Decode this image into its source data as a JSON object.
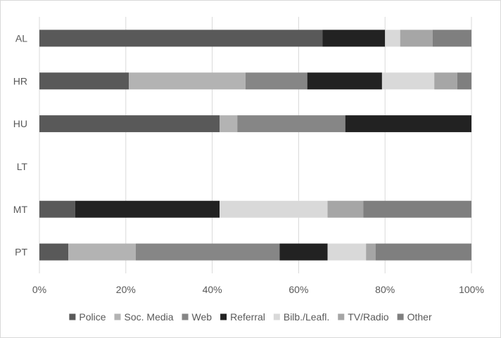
{
  "chart_data": {
    "type": "bar",
    "orientation": "horizontal",
    "stacked": true,
    "percent": true,
    "categories": [
      "AL",
      "HR",
      "HU",
      "LT",
      "MT",
      "PT"
    ],
    "series": [
      {
        "name": "Police",
        "color": "#595959",
        "values": [
          65.5,
          20.7,
          41.7,
          0,
          8.3,
          6.7
        ]
      },
      {
        "name": "Soc. Media",
        "color": "#b3b3b3",
        "values": [
          0,
          27.0,
          4.1,
          0,
          0,
          15.6
        ]
      },
      {
        "name": "Web",
        "color": "#868686",
        "values": [
          0,
          14.3,
          25.0,
          0,
          0,
          33.3
        ]
      },
      {
        "name": "Referral",
        "color": "#222222",
        "values": [
          14.5,
          17.3,
          29.2,
          0,
          33.4,
          11.1
        ]
      },
      {
        "name": "Bilb./Leafl.",
        "color": "#d9d9d9",
        "values": [
          3.5,
          12.1,
          0,
          0,
          25.0,
          8.9
        ]
      },
      {
        "name": "TV/Radio",
        "color": "#a6a6a6",
        "values": [
          7.5,
          5.3,
          0,
          0,
          8.3,
          2.2
        ]
      },
      {
        "name": "Other",
        "color": "#7f7f7f",
        "values": [
          9.0,
          3.3,
          0,
          0,
          25.0,
          22.2
        ]
      }
    ],
    "x_ticks": [
      "0%",
      "20%",
      "40%",
      "60%",
      "80%",
      "100%"
    ],
    "xlim": [
      0,
      100
    ],
    "grid": true,
    "legend": "bottom"
  }
}
